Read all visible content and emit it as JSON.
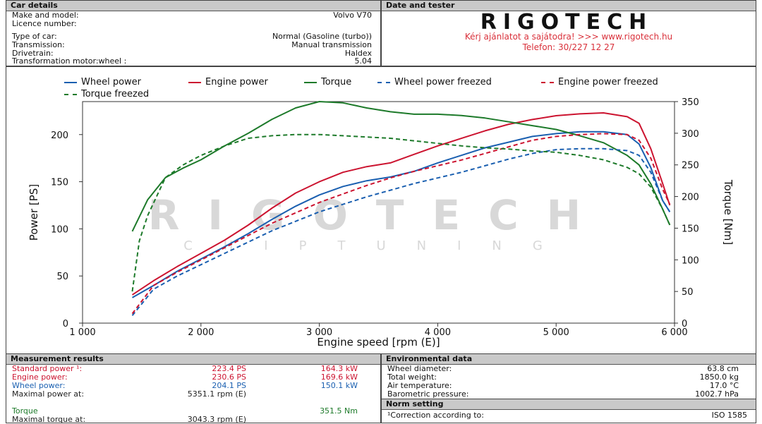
{
  "car_details": {
    "title": "Car details",
    "rows": [
      {
        "label": "Make and model:",
        "value": "Volvo V70"
      },
      {
        "label": "Licence number:",
        "value": ""
      },
      {
        "label": "Type of car:",
        "value": "Normal (Gasoline (turbo))"
      },
      {
        "label": "Transmission:",
        "value": "Manual transmission"
      },
      {
        "label": "Drivetrain:",
        "value": "Haldex"
      },
      {
        "label": "Transformation motor:wheel :",
        "value": "5.04"
      }
    ]
  },
  "tester": {
    "title": "Date and tester",
    "logo_text": "RIGOTECH",
    "line1": "Kérj ajánlatot a sajátodra!  >>>  www.rigotech.hu",
    "line2": "Telefon: 30/227 12 27"
  },
  "watermark": {
    "main": "RIGOTECH",
    "sub": "CHIPTUNING"
  },
  "colors": {
    "wheel": "#1a5fb0",
    "engine": "#cc1430",
    "torque": "#1d7a2a",
    "header_bg": "#c9c9c9"
  },
  "chart_data": {
    "type": "line",
    "xlabel": "Engine speed [rpm (E)]",
    "ylabel_left": "Power [PS]",
    "ylabel_right": "Torque [Nm]",
    "xlim": [
      1000,
      6000
    ],
    "ylim_left": [
      0,
      235
    ],
    "ylim_right": [
      0,
      350
    ],
    "x_ticks": [
      1000,
      2000,
      3000,
      4000,
      5000,
      6000
    ],
    "x_tick_labels": [
      "1 000",
      "2 000",
      "3 000",
      "4 000",
      "5 000",
      "6 000"
    ],
    "y_left_ticks": [
      0,
      50,
      100,
      150,
      200
    ],
    "y_right_ticks": [
      0,
      50,
      100,
      150,
      200,
      250,
      300,
      350
    ],
    "grid": false,
    "legend": "top",
    "series": [
      {
        "name": "Wheel power",
        "axis": "left",
        "style": "solid",
        "color": "#1a5fb0",
        "x": [
          1420,
          1600,
          1800,
          2000,
          2200,
          2400,
          2600,
          2800,
          3000,
          3200,
          3400,
          3600,
          3800,
          4000,
          4200,
          4400,
          4600,
          4800,
          5000,
          5200,
          5400,
          5600,
          5700,
          5800,
          5900,
          5960
        ],
        "y": [
          27,
          40,
          55,
          68,
          81,
          95,
          110,
          124,
          136,
          145,
          151,
          155,
          161,
          170,
          178,
          186,
          192,
          198,
          201,
          203,
          203,
          200,
          190,
          165,
          130,
          118
        ]
      },
      {
        "name": "Engine power",
        "axis": "left",
        "style": "solid",
        "color": "#cc1430",
        "x": [
          1420,
          1600,
          1800,
          2000,
          2200,
          2400,
          2600,
          2800,
          3000,
          3200,
          3400,
          3600,
          3800,
          4000,
          4200,
          4400,
          4600,
          4800,
          5000,
          5200,
          5400,
          5600,
          5700,
          5800,
          5900,
          5960
        ],
        "y": [
          30,
          45,
          60,
          74,
          88,
          104,
          122,
          138,
          150,
          160,
          166,
          170,
          179,
          188,
          196,
          204,
          211,
          216,
          220,
          222,
          223,
          219,
          212,
          185,
          148,
          125
        ]
      },
      {
        "name": "Torque",
        "axis": "right",
        "style": "solid",
        "color": "#1d7a2a",
        "x": [
          1420,
          1550,
          1700,
          1850,
          2000,
          2200,
          2400,
          2600,
          2800,
          3000,
          3200,
          3400,
          3600,
          3800,
          4000,
          4200,
          4400,
          4600,
          4800,
          5000,
          5200,
          5400,
          5600,
          5700,
          5800,
          5900,
          5960
        ],
        "y": [
          145,
          195,
          230,
          245,
          258,
          280,
          300,
          322,
          340,
          350,
          348,
          340,
          334,
          330,
          330,
          328,
          324,
          318,
          312,
          306,
          296,
          285,
          265,
          250,
          220,
          180,
          155
        ]
      },
      {
        "name": "Wheel power freezed",
        "axis": "left",
        "style": "dashed",
        "color": "#1a5fb0",
        "x": [
          1420,
          1600,
          1800,
          2000,
          2200,
          2400,
          2600,
          2800,
          3000,
          3200,
          3400,
          3600,
          3800,
          4000,
          4200,
          4400,
          4600,
          4800,
          5000,
          5200,
          5400,
          5600,
          5700,
          5800,
          5900,
          5960
        ],
        "y": [
          8,
          36,
          50,
          62,
          74,
          86,
          98,
          108,
          118,
          126,
          134,
          141,
          148,
          154,
          160,
          167,
          174,
          180,
          184,
          185,
          185,
          183,
          178,
          160,
          130,
          118
        ]
      },
      {
        "name": "Engine power freezed",
        "axis": "left",
        "style": "dashed",
        "color": "#cc1430",
        "x": [
          1420,
          1600,
          1800,
          2000,
          2200,
          2400,
          2600,
          2800,
          3000,
          3200,
          3400,
          3600,
          3800,
          4000,
          4200,
          4400,
          4600,
          4800,
          5000,
          5200,
          5400,
          5600,
          5700,
          5800,
          5900,
          5960
        ],
        "y": [
          10,
          40,
          54,
          67,
          80,
          93,
          106,
          117,
          128,
          137,
          146,
          154,
          161,
          167,
          173,
          180,
          187,
          194,
          198,
          200,
          201,
          200,
          194,
          175,
          142,
          126
        ]
      },
      {
        "name": "Torque freezed",
        "axis": "right",
        "style": "dashed",
        "color": "#1d7a2a",
        "x": [
          1420,
          1480,
          1550,
          1700,
          1850,
          2000,
          2200,
          2400,
          2600,
          2800,
          3000,
          3200,
          3400,
          3600,
          3800,
          4000,
          4200,
          4400,
          4600,
          4800,
          5000,
          5200,
          5400,
          5600,
          5700,
          5800,
          5900,
          5960
        ],
        "y": [
          50,
          130,
          170,
          230,
          250,
          265,
          280,
          292,
          296,
          298,
          298,
          296,
          294,
          292,
          288,
          284,
          280,
          277,
          275,
          272,
          270,
          265,
          258,
          246,
          236,
          215,
          180,
          155
        ]
      }
    ]
  },
  "measurement": {
    "title": "Measurement results",
    "rows": [
      {
        "label": "Standard power ¹:",
        "v1": "223.4 PS",
        "v2": "164.3 kW",
        "color": "red"
      },
      {
        "label": "Engine power:",
        "v1": "230.6 PS",
        "v2": "169.6 kW",
        "color": "red"
      },
      {
        "label": "Wheel power:",
        "v1": "204.1 PS",
        "v2": "150.1 kW",
        "color": "blu"
      },
      {
        "label": "Maximal power at:",
        "v1": "5351.1 rpm (E)",
        "v2": "",
        "color": "dark"
      },
      {
        "label": "",
        "v1": "",
        "v2": "",
        "color": "dark"
      },
      {
        "label": "Torque",
        "v1": "",
        "v2": "351.5 Nm",
        "color": "grn"
      },
      {
        "label": "Maximal torque at:",
        "v1": "3043.3 rpm (E)",
        "v2": "",
        "color": "dark"
      }
    ]
  },
  "environment": {
    "title": "Environmental data",
    "rows": [
      {
        "label": "Wheel diameter:",
        "value": "63.8 cm"
      },
      {
        "label": "Total weight:",
        "value": "1850.0 kg"
      },
      {
        "label": "Air temperature:",
        "value": "17.0 °C"
      },
      {
        "label": "Barometric pressure:",
        "value": "1002.7 hPa"
      }
    ]
  },
  "norm": {
    "title": "Norm setting",
    "label": "¹Correction according to:",
    "value": "ISO 1585"
  }
}
